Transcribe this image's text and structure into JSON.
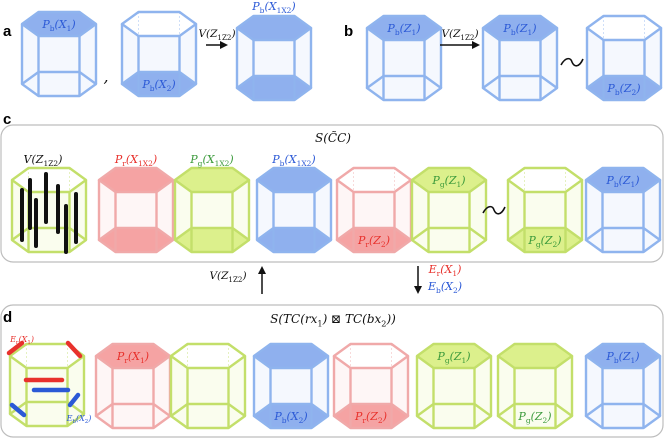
{
  "colors": {
    "blue_edge": "#8fb4ee",
    "blue_fill": "#8fb0ee",
    "blue_text": "#2b59d6",
    "red_edge": "#f0a9a9",
    "red_fill": "#f5a3a3",
    "red_text": "#e8312c",
    "green_edge": "#c3df6a",
    "green_fill": "#dcf08c",
    "green_text": "#3b9a3b",
    "black": "#111111",
    "panel_border": "#bdbdbd"
  },
  "panels": {
    "a": {
      "letter": "a",
      "label_1": "P_b(X_1)",
      "label_2": "P_b(X_2)",
      "separator": ",",
      "arrow_label": "V(Z_1Z_2)",
      "result_label": "P_b(X_1X_2)"
    },
    "b": {
      "letter": "b",
      "label_1": "P_b(Z_1)",
      "arrow_label": "V(Z_1Z_2)",
      "label_2": "P_b(Z_1)",
      "equiv": "~",
      "label_3": "P_b(Z_2)"
    },
    "c": {
      "letter": "c",
      "title": "S(C̃C)",
      "header_v": "V(Z_1Z_2)",
      "header_r": "P_r(X_1X_2)",
      "header_g": "P_g(X_1X_2)",
      "header_b": "P_b(X_1X_2)",
      "red_inner": "P_r(Z_2)",
      "green_top": "P_g(Z_1)",
      "equiv": "~",
      "green_bottom": "P_g(Z_2)",
      "blue_top": "P_b(Z_1)"
    },
    "arrows": {
      "up_label": "V(Z_1Z_2)",
      "down_label_1": "E_r(X_1)",
      "down_label_2": "E_b(X_2)"
    },
    "d": {
      "letter": "d",
      "title": "S(TC(rx_1) ⊠ TC(bx_2))",
      "er_label": "E_r(X_1)",
      "eb_label": "E_b(X_2)",
      "red1": "P_r(X_1)",
      "blue_bottom": "P_b(X_2)",
      "red2": "P_r(Z_2)",
      "green_top": "P_g(Z_1)",
      "green_bottom": "P_g(Z_2)",
      "blue_top": "P_b(Z_1)"
    }
  }
}
